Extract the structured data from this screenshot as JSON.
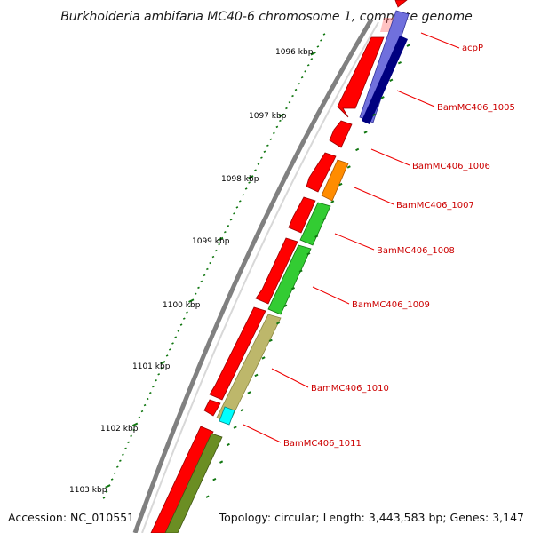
{
  "title": "Burkholderia ambifaria MC40-6 chromosome 1, complete genome",
  "footer": {
    "accession": "Accession: NC_010551",
    "topology": "Topology: circular; Length: 3,443,583 bp; Genes: 3,147"
  },
  "colors": {
    "backbone": "#888888",
    "forward_gene": "#ff0000",
    "ticks": "#117711",
    "label_text": "#cc0000",
    "callout_line": "#ee0000"
  },
  "kbp_labels": [
    "1096 kbp",
    "1097 kbp",
    "1098 kbp",
    "1099 kbp",
    "1100 kbp",
    "1101 kbp",
    "1102 kbp",
    "1103 kbp"
  ],
  "genes": [
    {
      "label": "acpP",
      "color": "#ff6666"
    },
    {
      "label": "BamMC406_1005",
      "color": "#000080"
    },
    {
      "label": "BamMC406_1006",
      "color": "#ffffff"
    },
    {
      "label": "BamMC406_1007",
      "color": "#ff8c00"
    },
    {
      "label": "BamMC406_1008",
      "color": "#33cc33"
    },
    {
      "label": "BamMC406_1009",
      "color": "#33cc33"
    },
    {
      "label": "BamMC406_1010",
      "color": "#bdb76b"
    },
    {
      "label": "BamMC406_1011",
      "color": "#00ffff"
    }
  ]
}
